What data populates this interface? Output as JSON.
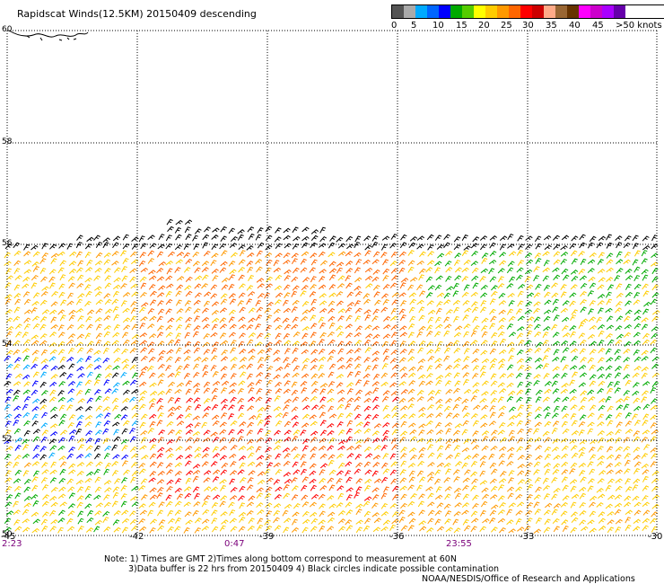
{
  "title": "Rapidscat Winds(12.5KM) 20150409 descending",
  "legend": {
    "colors": [
      "#555555",
      "#aaaaaa",
      "#00aaff",
      "#0066ff",
      "#0000ff",
      "#00aa00",
      "#55cc00",
      "#ffff00",
      "#ffcc00",
      "#ff9900",
      "#ff6600",
      "#ff0000",
      "#cc0000",
      "#ffaa88",
      "#996633",
      "#663300",
      "#ff00ff",
      "#cc00cc",
      "#aa00ff",
      "#6600aa"
    ],
    "labels": [
      "0",
      "5",
      "10",
      "15",
      "20",
      "25",
      "30",
      "35",
      "40",
      "45",
      ">50 knots"
    ]
  },
  "lat_labels": [
    "60",
    "58",
    "56",
    "54",
    "52",
    "50"
  ],
  "lon_labels": [
    "-45",
    "-42",
    "-39",
    "-36",
    "-33",
    "-30"
  ],
  "time_labels": [
    "2:23",
    "0:47",
    "23:55"
  ],
  "notes": [
    "Note: 1) Times are GMT 2)Times along bottom correspond to measurement at 60N",
    "3)Data buffer is 22 hrs from 20150409 4) Black circles indicate possible contamination",
    "NOAA/NESDIS/Office of Research and Applications"
  ]
}
